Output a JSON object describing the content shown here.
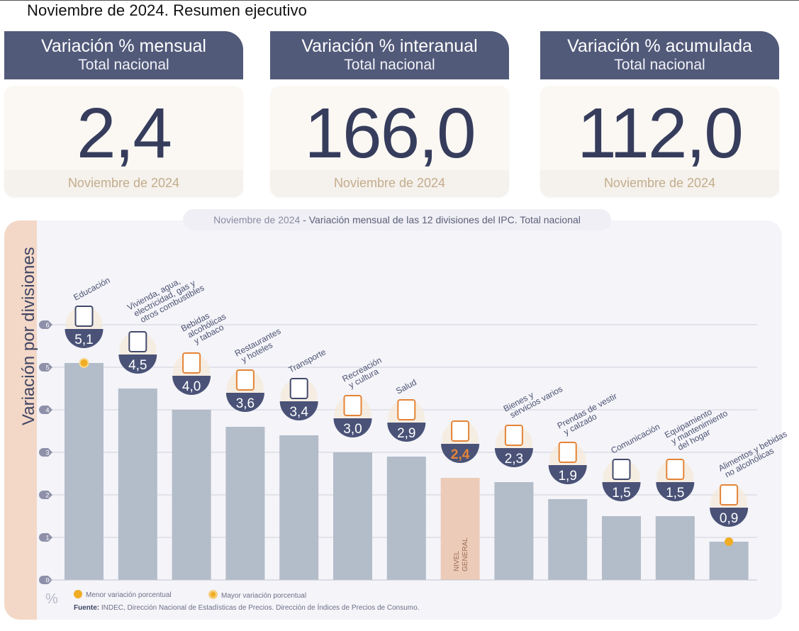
{
  "page": {
    "title": "Noviembre de 2024. Resumen ejecutivo"
  },
  "cards": [
    {
      "title": "Variación % mensual",
      "subtitle": "Total nacional",
      "value": "2,4",
      "period": "Noviembre de 2024"
    },
    {
      "title": "Variación % interanual",
      "subtitle": "Total nacional",
      "value": "166,0",
      "period": "Noviembre de 2024"
    },
    {
      "title": "Variación % acumulada",
      "subtitle": "Total nacional",
      "value": "112,0",
      "period": "Noviembre de 2024"
    }
  ],
  "chart_header": {
    "period": "Noviembre de 2024",
    "separator": " - ",
    "text": "Variación mensual de las 12 divisiones del IPC. Total nacional"
  },
  "legend": {
    "min_label": "Menor variación porcentual",
    "max_label": "Mayor variación porcentual",
    "unit_symbol": "%"
  },
  "source": {
    "label": "Fuente:",
    "text": " INDEC, Dirección Nacional de Estadísticas de Precios. Dirección de Índices de Precios de Consumo."
  },
  "colors": {
    "header_navy": "#525a7a",
    "value_navy": "#363d5c",
    "bar_gray": "#b3bcc9",
    "bar_general": "#ecccb8",
    "accent_orange": "#e48437",
    "marker_yellow": "#f0ad24"
  },
  "chart_data": {
    "type": "bar",
    "title": "Noviembre de 2024 - Variación mensual de las 12 divisiones del IPC. Total nacional",
    "ylabel": "Variación por divisiones",
    "xlabel": "",
    "unit": "%",
    "ylim": [
      0,
      6
    ],
    "yticks": [
      "0",
      "1",
      "2",
      "3",
      "4",
      "5",
      "6"
    ],
    "grid": true,
    "categories": [
      [
        "Educación"
      ],
      [
        "Vivienda, agua,",
        "electricidad, gas y",
        "otros combustibles"
      ],
      [
        "Bebidas",
        "alcohólicas",
        "y tabaco"
      ],
      [
        "Restaurantes",
        "y hoteles"
      ],
      [
        "Transporte"
      ],
      [
        "Recreación",
        "y cultura"
      ],
      [
        "Salud"
      ],
      [
        "NIVEL",
        "GENERAL"
      ],
      [
        "Bienes y",
        "servicios varios"
      ],
      [
        "Prendas de vestir",
        "y calzado"
      ],
      [
        "Comunicación"
      ],
      [
        "Equipamiento",
        "y mantenimiento",
        "del hogar"
      ],
      [
        "Alimentos y bebidas",
        "no alcohólicas"
      ]
    ],
    "values": [
      5.1,
      4.5,
      4.0,
      3.6,
      3.4,
      3.0,
      2.9,
      2.4,
      2.3,
      1.9,
      1.5,
      1.5,
      0.9
    ],
    "value_labels": [
      "5,1",
      "4,5",
      "4,0",
      "3,6",
      "3,4",
      "3,0",
      "2,9",
      "2,4",
      "2,3",
      "1,9",
      "1,5",
      "1,5",
      "0,9"
    ],
    "icons": [
      "notebook-icon",
      "lightbulb-icon",
      "wine-bottle-icon",
      "plate-cutlery-icon",
      "car-sube-icon",
      "umbrella-sun-icon",
      "first-aid-icon",
      "shopping-bag-icon",
      "comb-scissors-icon",
      "tshirt-shoe-icon",
      "smartphone-icon",
      "washing-machine-icon",
      "chicken-food-icon"
    ],
    "general_index": 7,
    "max_marker_index": 0,
    "min_marker_index": 12
  }
}
